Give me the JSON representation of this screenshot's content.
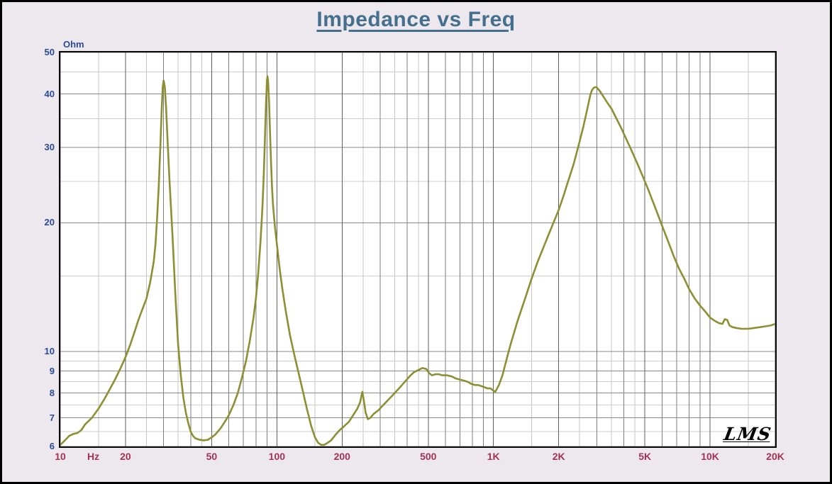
{
  "title": "Impedance vs Freq",
  "branding": {
    "logo": "LMS"
  },
  "axes": {
    "y_unit": "Ohm",
    "x_unit": "Hz",
    "colors": {
      "title": "#44708e",
      "y_label": "#2b4a96",
      "x_label": "#a63253",
      "background": "#ece8ee",
      "plot_background": "#ffffff",
      "frame": "#0a0a0a"
    }
  },
  "chart_data": {
    "type": "line",
    "title": "Impedance vs Freq",
    "xlabel": "Hz",
    "ylabel": "Ohm",
    "x_scale": "log",
    "y_scale": "log",
    "xlim": [
      10,
      20000
    ],
    "ylim": [
      6,
      50
    ],
    "grid": {
      "x_major": [
        10,
        20,
        50,
        100,
        200,
        500,
        1000,
        2000,
        5000,
        10000,
        20000
      ],
      "x_minor": [
        30,
        40,
        60,
        70,
        80,
        90,
        300,
        400,
        600,
        700,
        800,
        900,
        3000,
        4000,
        6000,
        7000,
        8000,
        9000
      ],
      "x_half": [
        15,
        25,
        35,
        45,
        150,
        250,
        350,
        450,
        1500,
        2500,
        3500,
        4500,
        15000
      ],
      "y_major": [
        50,
        40,
        30,
        20,
        10,
        9,
        8,
        7,
        6
      ],
      "y_minor": [
        45,
        35,
        25,
        15,
        9.5,
        8.5,
        7.5,
        6.5
      ]
    },
    "x_major_ticks": [
      {
        "f": 10,
        "label": "10"
      },
      {
        "f": 20,
        "label": "20"
      },
      {
        "f": 50,
        "label": "50"
      },
      {
        "f": 100,
        "label": "100"
      },
      {
        "f": 200,
        "label": "200"
      },
      {
        "f": 500,
        "label": "500"
      },
      {
        "f": 1000,
        "label": "1K"
      },
      {
        "f": 2000,
        "label": "2K"
      },
      {
        "f": 5000,
        "label": "5K"
      },
      {
        "f": 10000,
        "label": "10K"
      },
      {
        "f": 20000,
        "label": "20K"
      }
    ],
    "y_major_ticks": [
      {
        "v": 50,
        "label": "50"
      },
      {
        "v": 40,
        "label": "40"
      },
      {
        "v": 30,
        "label": "30"
      },
      {
        "v": 20,
        "label": "20"
      },
      {
        "v": 10,
        "label": "10"
      },
      {
        "v": 9,
        "label": "9"
      },
      {
        "v": 8,
        "label": "8"
      },
      {
        "v": 7,
        "label": "7"
      },
      {
        "v": 6,
        "label": "6"
      }
    ],
    "series": [
      {
        "name": "impedance",
        "color": "#8d8f34",
        "points": [
          [
            10,
            6.05
          ],
          [
            10.5,
            6.2
          ],
          [
            11,
            6.35
          ],
          [
            11.5,
            6.42
          ],
          [
            12,
            6.45
          ],
          [
            12.5,
            6.55
          ],
          [
            13,
            6.75
          ],
          [
            14,
            7.0
          ],
          [
            15,
            7.35
          ],
          [
            16,
            7.75
          ],
          [
            17,
            8.2
          ],
          [
            18,
            8.65
          ],
          [
            19,
            9.15
          ],
          [
            20,
            9.7
          ],
          [
            21,
            10.35
          ],
          [
            22,
            11.1
          ],
          [
            23,
            11.9
          ],
          [
            24,
            12.6
          ],
          [
            25,
            13.3
          ],
          [
            26,
            14.5
          ],
          [
            27,
            16.2
          ],
          [
            27.5,
            17.8
          ],
          [
            28,
            20.5
          ],
          [
            28.5,
            24.5
          ],
          [
            29,
            30.5
          ],
          [
            29.4,
            37
          ],
          [
            29.7,
            41.5
          ],
          [
            30,
            43
          ],
          [
            30.4,
            41.5
          ],
          [
            30.8,
            37
          ],
          [
            31.3,
            31
          ],
          [
            32,
            24.5
          ],
          [
            33,
            18.5
          ],
          [
            34,
            13.5
          ],
          [
            35,
            10.4
          ],
          [
            36,
            8.8
          ],
          [
            37,
            7.8
          ],
          [
            38,
            7.2
          ],
          [
            39,
            6.8
          ],
          [
            40,
            6.5
          ],
          [
            41,
            6.35
          ],
          [
            42,
            6.27
          ],
          [
            44,
            6.22
          ],
          [
            46,
            6.2
          ],
          [
            48,
            6.22
          ],
          [
            50,
            6.3
          ],
          [
            52,
            6.4
          ],
          [
            55,
            6.62
          ],
          [
            58,
            6.9
          ],
          [
            60,
            7.1
          ],
          [
            63,
            7.5
          ],
          [
            66,
            8.0
          ],
          [
            69,
            8.7
          ],
          [
            72,
            9.5
          ],
          [
            75,
            10.6
          ],
          [
            78,
            12.0
          ],
          [
            80,
            13.3
          ],
          [
            82,
            15.2
          ],
          [
            84,
            18.0
          ],
          [
            85,
            20.0
          ],
          [
            86,
            22.5
          ],
          [
            87,
            26
          ],
          [
            88,
            31
          ],
          [
            89,
            37.5
          ],
          [
            90,
            43
          ],
          [
            90.5,
            44
          ],
          [
            91,
            43
          ],
          [
            92,
            38.5
          ],
          [
            93,
            32.5
          ],
          [
            94,
            27.5
          ],
          [
            95,
            24
          ],
          [
            96,
            22
          ],
          [
            98,
            19.5
          ],
          [
            100,
            17.8
          ],
          [
            103,
            15.6
          ],
          [
            106,
            14.0
          ],
          [
            110,
            12.4
          ],
          [
            115,
            10.9
          ],
          [
            120,
            9.9
          ],
          [
            126,
            8.9
          ],
          [
            132,
            8.05
          ],
          [
            138,
            7.3
          ],
          [
            144,
            6.7
          ],
          [
            150,
            6.3
          ],
          [
            155,
            6.12
          ],
          [
            160,
            6.05
          ],
          [
            165,
            6.05
          ],
          [
            170,
            6.1
          ],
          [
            178,
            6.2
          ],
          [
            186,
            6.38
          ],
          [
            195,
            6.55
          ],
          [
            205,
            6.7
          ],
          [
            215,
            6.85
          ],
          [
            225,
            7.1
          ],
          [
            235,
            7.35
          ],
          [
            242,
            7.6
          ],
          [
            248,
            8.05
          ],
          [
            252,
            7.7
          ],
          [
            257,
            7.2
          ],
          [
            263,
            6.95
          ],
          [
            270,
            7.0
          ],
          [
            280,
            7.15
          ],
          [
            295,
            7.3
          ],
          [
            310,
            7.5
          ],
          [
            330,
            7.75
          ],
          [
            350,
            8.0
          ],
          [
            370,
            8.25
          ],
          [
            390,
            8.5
          ],
          [
            410,
            8.75
          ],
          [
            430,
            8.95
          ],
          [
            450,
            9.05
          ],
          [
            470,
            9.15
          ],
          [
            490,
            9.1
          ],
          [
            505,
            8.9
          ],
          [
            520,
            8.8
          ],
          [
            540,
            8.85
          ],
          [
            560,
            8.85
          ],
          [
            580,
            8.8
          ],
          [
            610,
            8.8
          ],
          [
            640,
            8.75
          ],
          [
            670,
            8.65
          ],
          [
            700,
            8.6
          ],
          [
            730,
            8.55
          ],
          [
            760,
            8.5
          ],
          [
            790,
            8.4
          ],
          [
            820,
            8.35
          ],
          [
            850,
            8.35
          ],
          [
            880,
            8.3
          ],
          [
            910,
            8.25
          ],
          [
            940,
            8.2
          ],
          [
            970,
            8.2
          ],
          [
            1000,
            8.1
          ],
          [
            1020,
            8.05
          ],
          [
            1060,
            8.35
          ],
          [
            1100,
            8.8
          ],
          [
            1150,
            9.6
          ],
          [
            1200,
            10.4
          ],
          [
            1300,
            11.9
          ],
          [
            1400,
            13.3
          ],
          [
            1500,
            14.8
          ],
          [
            1600,
            16.2
          ],
          [
            1700,
            17.5
          ],
          [
            1800,
            18.8
          ],
          [
            1900,
            20.1
          ],
          [
            2000,
            21.4
          ],
          [
            2100,
            23
          ],
          [
            2200,
            24.8
          ],
          [
            2350,
            27.5
          ],
          [
            2500,
            31
          ],
          [
            2600,
            33.5
          ],
          [
            2700,
            36.5
          ],
          [
            2800,
            39.8
          ],
          [
            2850,
            40.8
          ],
          [
            2900,
            41.3
          ],
          [
            2950,
            41.5
          ],
          [
            3000,
            41.4
          ],
          [
            3100,
            40.6
          ],
          [
            3200,
            39.6
          ],
          [
            3350,
            38.2
          ],
          [
            3500,
            37
          ],
          [
            3700,
            35
          ],
          [
            3900,
            33.2
          ],
          [
            4100,
            31.4
          ],
          [
            4300,
            29.8
          ],
          [
            4600,
            27.6
          ],
          [
            4900,
            25.6
          ],
          [
            5200,
            23.8
          ],
          [
            5600,
            21.6
          ],
          [
            6000,
            19.7
          ],
          [
            6400,
            18.1
          ],
          [
            6800,
            16.7
          ],
          [
            7200,
            15.6
          ],
          [
            7600,
            14.8
          ],
          [
            8000,
            14.0
          ],
          [
            8500,
            13.3
          ],
          [
            9000,
            12.8
          ],
          [
            9500,
            12.4
          ],
          [
            10000,
            12.0
          ],
          [
            10500,
            11.8
          ],
          [
            11000,
            11.65
          ],
          [
            11400,
            11.6
          ],
          [
            11700,
            11.9
          ],
          [
            12000,
            11.85
          ],
          [
            12300,
            11.5
          ],
          [
            12700,
            11.4
          ],
          [
            13200,
            11.35
          ],
          [
            14000,
            11.3
          ],
          [
            15000,
            11.3
          ],
          [
            16000,
            11.35
          ],
          [
            17000,
            11.4
          ],
          [
            18000,
            11.45
          ],
          [
            19000,
            11.5
          ],
          [
            20000,
            11.6
          ]
        ]
      }
    ]
  }
}
